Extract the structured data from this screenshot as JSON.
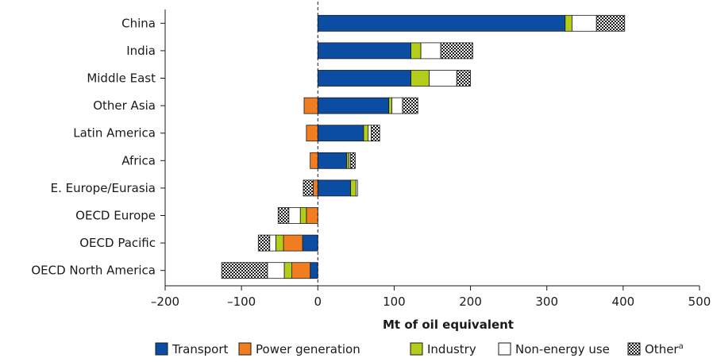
{
  "chart_data": {
    "type": "bar",
    "orientation": "horizontal",
    "stacked": true,
    "categories": [
      "China",
      "India",
      "Middle East",
      "Other Asia",
      "Latin America",
      "Africa",
      "E. Europe/Eurasia",
      "OECD Europe",
      "OECD Pacific",
      "OECD North America"
    ],
    "series": [
      {
        "name": "Transport",
        "color": "#0a4da2",
        "pattern": "solid",
        "values": [
          324,
          122,
          122,
          93,
          60,
          38,
          43,
          0,
          -20,
          -10
        ]
      },
      {
        "name": "Power generation",
        "color": "#f07d1f",
        "pattern": "solid",
        "values": [
          0,
          0,
          0,
          -18,
          -15,
          -10,
          -6,
          -15,
          -25,
          -24
        ]
      },
      {
        "name": "Industry",
        "color": "#b4cc1a",
        "pattern": "solid",
        "values": [
          9,
          13,
          24,
          4,
          6,
          3,
          7,
          -8,
          -10,
          -10
        ]
      },
      {
        "name": "Non-energy use",
        "color": "#ffffff",
        "pattern": "solid",
        "values": [
          32,
          26,
          36,
          14,
          4,
          2,
          2,
          -15,
          -8,
          -22
        ]
      },
      {
        "name": "Other",
        "name_sup": "a",
        "color": "#ffffff",
        "pattern": "dots",
        "values": [
          37,
          42,
          18,
          20,
          11,
          6,
          -13,
          -14,
          -15,
          -60
        ]
      }
    ],
    "xlabel": "Mt of oil equivalent",
    "xlim": [
      -200,
      500
    ],
    "xticks": [
      -200,
      -100,
      0,
      100,
      200,
      300,
      400,
      500
    ],
    "xtick_labels": [
      "–200",
      "–100",
      "0",
      "100",
      "200",
      "300",
      "400",
      "500"
    ],
    "zero_line": "dashed",
    "grid": false,
    "legend_position": "bottom"
  }
}
